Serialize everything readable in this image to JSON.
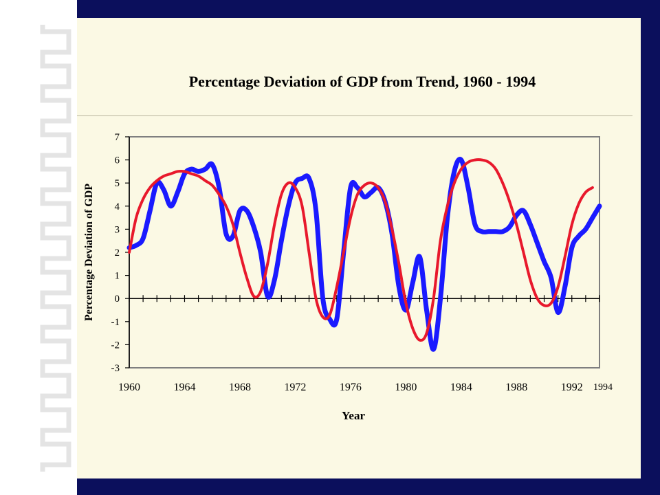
{
  "slide_title": "Percentage Deviation of GDP from Trend, 1960 - 1994",
  "colors": {
    "frame": "#0b0f5c",
    "slide_bg": "#fbf9e4",
    "actual_line": "#1a1aff",
    "trend_line": "#e8192c"
  },
  "chart_data": {
    "type": "line",
    "title": "Percentage Deviation of GDP from Trend, 1960 - 1994",
    "xlabel": "Year",
    "ylabel": "Percentage Deviation of GDP",
    "xlim": [
      1960,
      1994
    ],
    "ylim": [
      -3,
      7
    ],
    "x_tick_labels": [
      "1960",
      "1964",
      "1968",
      "1972",
      "1976",
      "1980",
      "1984",
      "1988",
      "1992"
    ],
    "extra_x_label": "1994",
    "y_ticks": [
      -3,
      -2,
      -1,
      0,
      1,
      2,
      3,
      4,
      5,
      6,
      7
    ],
    "grid": false,
    "legend": "none",
    "series": [
      {
        "color": "#1a1aff",
        "x": [
          1960,
          1960.5,
          1961,
          1961.5,
          1962,
          1962.5,
          1963,
          1963.5,
          1964,
          1964.5,
          1965,
          1965.5,
          1966,
          1966.5,
          1967,
          1967.5,
          1968,
          1968.5,
          1969,
          1969.5,
          1970,
          1970.5,
          1971,
          1971.5,
          1972,
          1972.5,
          1973,
          1973.5,
          1974,
          1974.5,
          1975,
          1975.5,
          1976,
          1976.5,
          1977,
          1977.5,
          1978,
          1978.5,
          1979,
          1979.5,
          1980,
          1980.5,
          1981,
          1981.5,
          1982,
          1982.5,
          1983,
          1983.5,
          1984,
          1984.5,
          1985,
          1985.5,
          1986,
          1986.5,
          1987,
          1987.5,
          1988,
          1988.5,
          1989,
          1989.5,
          1990,
          1990.5,
          1991,
          1991.5,
          1992,
          1992.5,
          1993,
          1993.5,
          1994
        ],
        "y": [
          2.2,
          2.3,
          2.6,
          3.8,
          5.0,
          4.7,
          4.0,
          4.6,
          5.4,
          5.6,
          5.5,
          5.6,
          5.8,
          4.8,
          2.8,
          2.7,
          3.8,
          3.8,
          3.1,
          2.0,
          0.1,
          0.8,
          2.5,
          4.0,
          5.0,
          5.2,
          5.2,
          3.8,
          0.0,
          -0.9,
          -0.9,
          2.0,
          4.8,
          4.8,
          4.4,
          4.6,
          4.8,
          4.2,
          2.8,
          0.5,
          -0.5,
          0.7,
          1.8,
          -0.5,
          -2.2,
          0.0,
          3.5,
          5.5,
          6.0,
          4.8,
          3.2,
          2.9,
          2.9,
          2.9,
          2.9,
          3.1,
          3.6,
          3.8,
          3.2,
          2.4,
          1.6,
          0.9,
          -0.6,
          0.5,
          2.2,
          2.7,
          3.0,
          3.5,
          4.0
        ]
      },
      {
        "color": "#e8192c",
        "x": [
          1960,
          1960.5,
          1961,
          1961.5,
          1962,
          1962.5,
          1963,
          1963.5,
          1964,
          1964.5,
          1965,
          1965.5,
          1966,
          1966.5,
          1967,
          1967.5,
          1968,
          1968.5,
          1969,
          1969.5,
          1970,
          1970.5,
          1971,
          1971.5,
          1972,
          1972.5,
          1973,
          1973.5,
          1974,
          1974.5,
          1975,
          1975.5,
          1976,
          1976.5,
          1977,
          1977.5,
          1978,
          1978.5,
          1979,
          1979.5,
          1980,
          1980.5,
          1981,
          1981.5,
          1982,
          1982.5,
          1983,
          1983.5,
          1984,
          1984.5,
          1985,
          1985.5,
          1986,
          1986.5,
          1987,
          1987.5,
          1988,
          1988.5,
          1989,
          1989.5,
          1990,
          1990.5,
          1991,
          1991.5,
          1992,
          1992.5,
          1993,
          1993.5
        ],
        "y": [
          2.0,
          3.5,
          4.3,
          4.8,
          5.1,
          5.3,
          5.4,
          5.5,
          5.5,
          5.4,
          5.3,
          5.1,
          4.9,
          4.5,
          4.0,
          3.2,
          2.0,
          0.9,
          0.1,
          0.3,
          1.5,
          3.2,
          4.5,
          5.0,
          4.8,
          4.0,
          2.0,
          0.0,
          -0.8,
          -0.7,
          0.5,
          2.0,
          3.5,
          4.5,
          4.9,
          5.0,
          4.8,
          4.2,
          3.0,
          1.5,
          -0.2,
          -1.3,
          -1.8,
          -1.5,
          0.0,
          2.5,
          4.0,
          5.0,
          5.6,
          5.9,
          6.0,
          6.0,
          5.9,
          5.6,
          5.0,
          4.2,
          3.2,
          2.0,
          0.8,
          0.0,
          -0.3,
          -0.2,
          0.5,
          1.8,
          3.2,
          4.1,
          4.6,
          4.8
        ]
      }
    ]
  }
}
